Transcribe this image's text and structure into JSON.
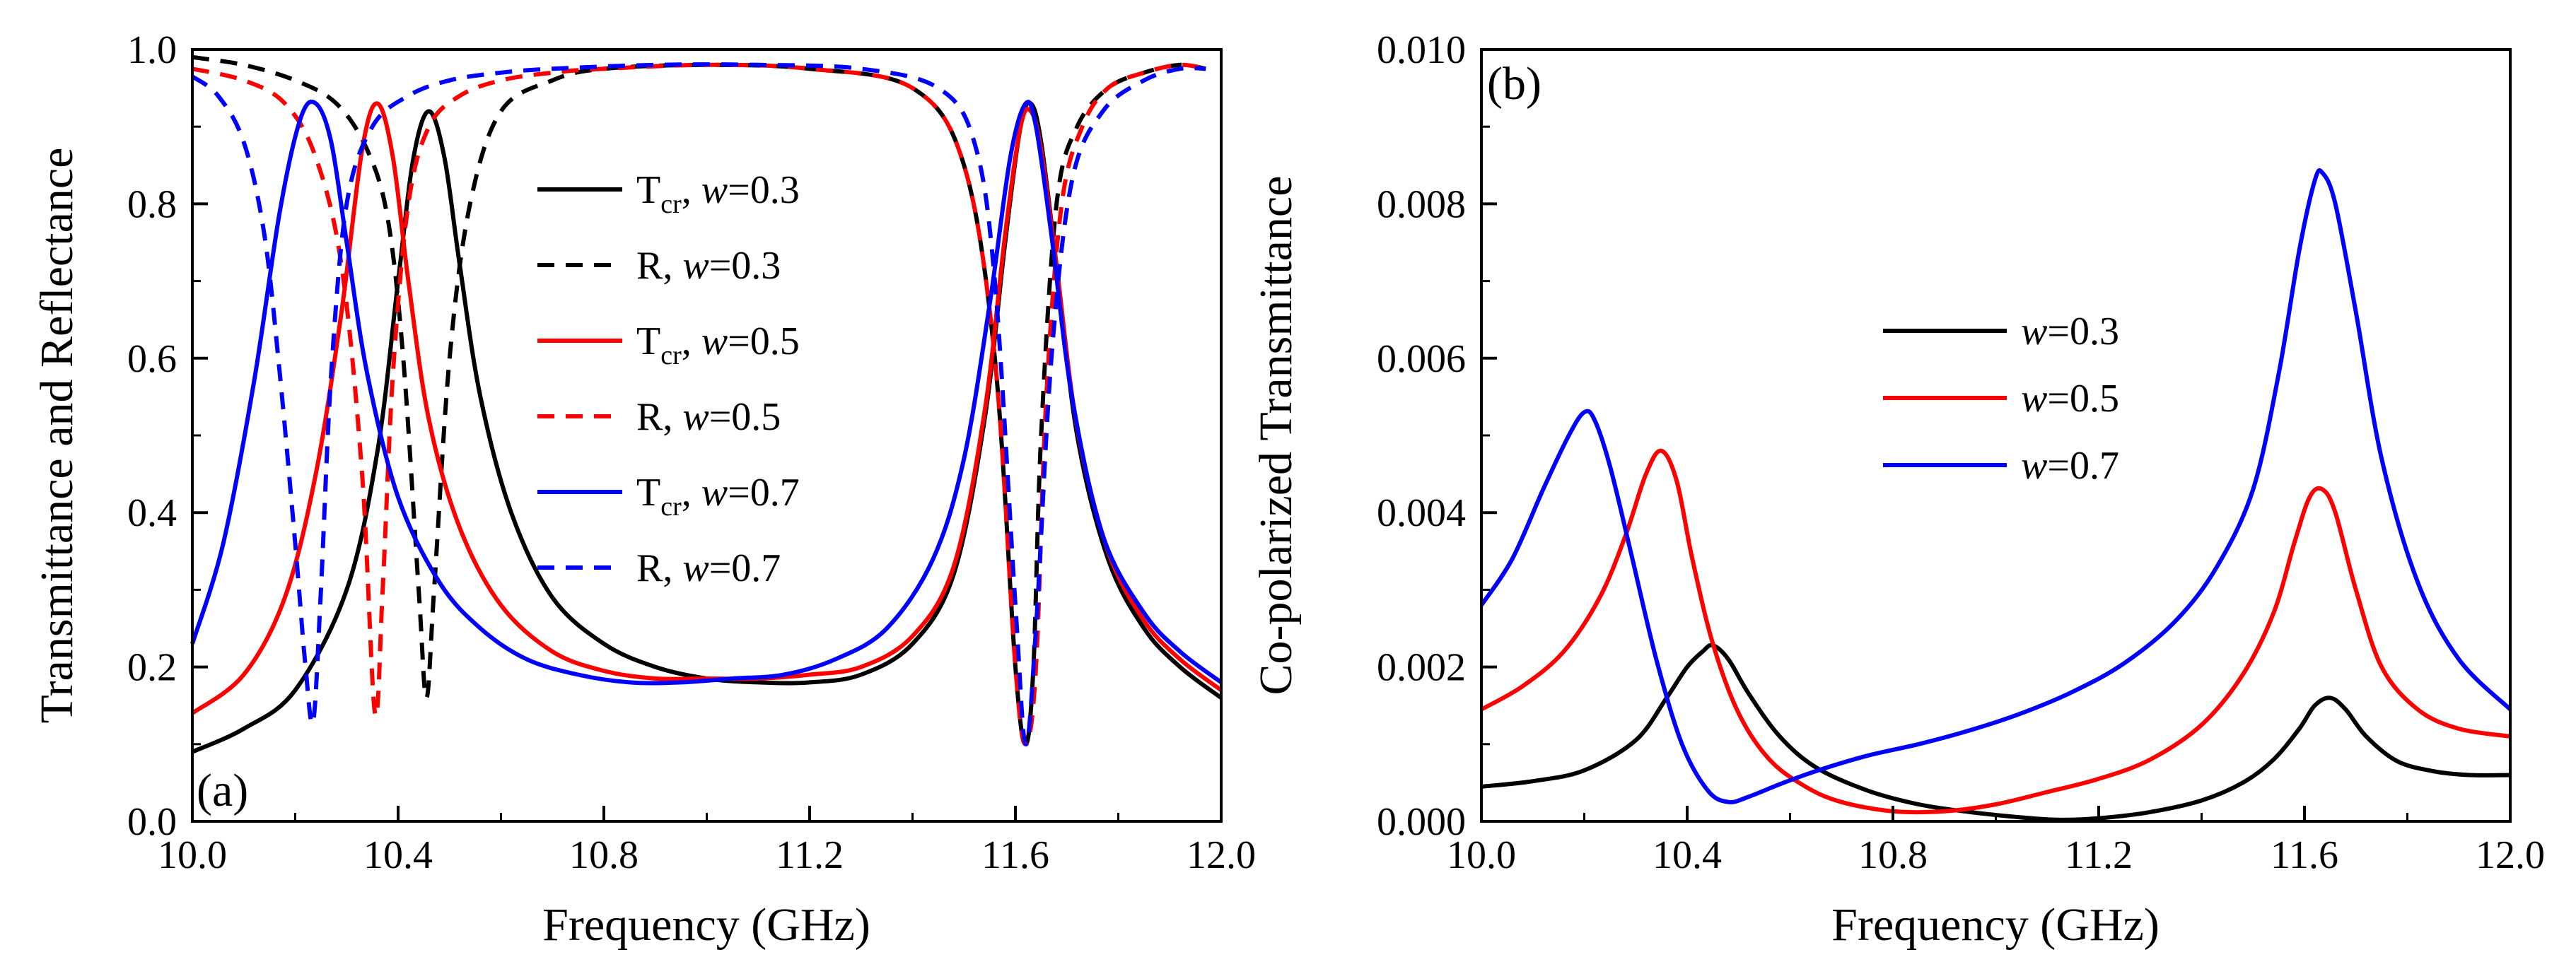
{
  "chart_data": [
    {
      "panel": "(a)",
      "type": "line",
      "xlabel": "Frequency (GHz)",
      "ylabel": "Transmittance and Reflectance",
      "xlim": [
        10.0,
        12.0
      ],
      "ylim": [
        0.0,
        1.0
      ],
      "xticks": [
        "10.0",
        "10.4",
        "10.8",
        "11.2",
        "11.6",
        "12.0"
      ],
      "yticks": [
        "0.0",
        "0.2",
        "0.4",
        "0.6",
        "0.8",
        "1.0"
      ],
      "legend_position": "center",
      "series": [
        {
          "name": "Tcr, w=0.3",
          "legend": {
            "main": "T",
            "sub": "cr",
            "mid": ", ",
            "var": "w",
            "val": "=0.3"
          },
          "color": "#000000",
          "dash": false,
          "x": [
            10.0,
            10.1,
            10.2,
            10.3,
            10.36,
            10.4,
            10.43,
            10.46,
            10.49,
            10.52,
            10.56,
            10.62,
            10.7,
            10.8,
            10.9,
            11.0,
            11.1,
            11.2,
            11.3,
            11.4,
            11.48,
            11.54,
            11.58,
            11.61,
            11.63,
            11.65,
            11.68,
            11.72,
            11.78,
            11.85,
            11.92,
            12.0
          ],
          "y": [
            0.09,
            0.12,
            0.17,
            0.3,
            0.48,
            0.7,
            0.86,
            0.92,
            0.86,
            0.72,
            0.55,
            0.4,
            0.29,
            0.23,
            0.2,
            0.185,
            0.18,
            0.18,
            0.19,
            0.23,
            0.32,
            0.52,
            0.75,
            0.9,
            0.93,
            0.88,
            0.72,
            0.5,
            0.34,
            0.25,
            0.2,
            0.16
          ]
        },
        {
          "name": "R, w=0.3",
          "legend": {
            "main": "R",
            "sub": "",
            "mid": ", ",
            "var": "w",
            "val": "=0.3"
          },
          "color": "#000000",
          "dash": true,
          "x": [
            10.0,
            10.1,
            10.2,
            10.28,
            10.34,
            10.38,
            10.41,
            10.44,
            10.455,
            10.47,
            10.5,
            10.54,
            10.6,
            10.7,
            10.8,
            11.0,
            11.2,
            11.4,
            11.5,
            11.56,
            11.6,
            11.62,
            11.635,
            11.65,
            11.68,
            11.72,
            11.78,
            11.85,
            11.92,
            11.97
          ],
          "y": [
            0.99,
            0.98,
            0.96,
            0.93,
            0.87,
            0.78,
            0.6,
            0.3,
            0.16,
            0.3,
            0.6,
            0.8,
            0.92,
            0.96,
            0.975,
            0.98,
            0.975,
            0.95,
            0.85,
            0.6,
            0.2,
            0.1,
            0.2,
            0.5,
            0.8,
            0.9,
            0.95,
            0.97,
            0.98,
            0.975
          ]
        },
        {
          "name": "Tcr, w=0.5",
          "legend": {
            "main": "T",
            "sub": "cr",
            "mid": ", ",
            "var": "w",
            "val": "=0.5"
          },
          "color": "#ff0000",
          "dash": false,
          "x": [
            10.0,
            10.1,
            10.18,
            10.24,
            10.29,
            10.33,
            10.36,
            10.39,
            10.42,
            10.46,
            10.52,
            10.6,
            10.7,
            10.8,
            10.9,
            11.0,
            11.1,
            11.2,
            11.3,
            11.4,
            11.48,
            11.54,
            11.58,
            11.61,
            11.63,
            11.65,
            11.68,
            11.72,
            11.78,
            11.85,
            11.92,
            12.0
          ],
          "y": [
            0.14,
            0.19,
            0.29,
            0.45,
            0.66,
            0.87,
            0.93,
            0.86,
            0.7,
            0.52,
            0.38,
            0.28,
            0.22,
            0.195,
            0.185,
            0.185,
            0.185,
            0.19,
            0.2,
            0.24,
            0.33,
            0.53,
            0.76,
            0.9,
            0.92,
            0.87,
            0.72,
            0.51,
            0.35,
            0.26,
            0.21,
            0.17
          ]
        },
        {
          "name": "R, w=0.5",
          "legend": {
            "main": "R",
            "sub": "",
            "mid": ", ",
            "var": "w",
            "val": "=0.5"
          },
          "color": "#ff0000",
          "dash": true,
          "x": [
            10.0,
            10.1,
            10.18,
            10.24,
            10.29,
            10.33,
            10.355,
            10.37,
            10.39,
            10.42,
            10.46,
            10.52,
            10.6,
            10.7,
            10.8,
            11.0,
            11.2,
            11.4,
            11.5,
            11.56,
            11.6,
            11.62,
            11.64,
            11.66,
            11.69,
            11.73,
            11.78,
            11.85,
            11.92,
            11.97
          ],
          "y": [
            0.975,
            0.96,
            0.93,
            0.86,
            0.72,
            0.45,
            0.14,
            0.3,
            0.58,
            0.8,
            0.9,
            0.94,
            0.96,
            0.97,
            0.975,
            0.98,
            0.975,
            0.95,
            0.85,
            0.6,
            0.2,
            0.1,
            0.2,
            0.55,
            0.8,
            0.9,
            0.95,
            0.97,
            0.98,
            0.975
          ]
        },
        {
          "name": "Tcr, w=0.7",
          "legend": {
            "main": "T",
            "sub": "cr",
            "mid": ", ",
            "var": "w",
            "val": "=0.7"
          },
          "color": "#0000ff",
          "dash": false,
          "x": [
            10.0,
            10.06,
            10.12,
            10.17,
            10.21,
            10.24,
            10.27,
            10.3,
            10.34,
            10.4,
            10.48,
            10.56,
            10.65,
            10.75,
            10.85,
            10.95,
            11.05,
            11.15,
            11.25,
            11.35,
            11.44,
            11.5,
            11.55,
            11.59,
            11.62,
            11.64,
            11.67,
            11.71,
            11.77,
            11.85,
            11.92,
            12.0
          ],
          "y": [
            0.23,
            0.36,
            0.57,
            0.79,
            0.91,
            0.93,
            0.88,
            0.75,
            0.58,
            0.42,
            0.31,
            0.25,
            0.21,
            0.19,
            0.18,
            0.18,
            0.185,
            0.19,
            0.21,
            0.25,
            0.34,
            0.47,
            0.67,
            0.86,
            0.93,
            0.9,
            0.76,
            0.55,
            0.37,
            0.27,
            0.22,
            0.18
          ]
        },
        {
          "name": "R, w=0.7",
          "legend": {
            "main": "R",
            "sub": "",
            "mid": ", ",
            "var": "w",
            "val": "=0.7"
          },
          "color": "#0000ff",
          "dash": true,
          "x": [
            10.0,
            10.05,
            10.1,
            10.14,
            10.17,
            10.2,
            10.22,
            10.235,
            10.25,
            10.27,
            10.3,
            10.35,
            10.42,
            10.5,
            10.6,
            10.7,
            10.9,
            11.1,
            11.3,
            11.45,
            11.52,
            11.56,
            11.6,
            11.62,
            11.64,
            11.67,
            11.71,
            11.77,
            11.85,
            11.92,
            11.97
          ],
          "y": [
            0.965,
            0.94,
            0.88,
            0.76,
            0.58,
            0.36,
            0.2,
            0.13,
            0.3,
            0.58,
            0.8,
            0.9,
            0.94,
            0.96,
            0.97,
            0.975,
            0.98,
            0.98,
            0.975,
            0.95,
            0.88,
            0.7,
            0.28,
            0.1,
            0.25,
            0.6,
            0.83,
            0.92,
            0.96,
            0.975,
            0.975
          ]
        }
      ]
    },
    {
      "panel": "(b)",
      "type": "line",
      "xlabel": "Frequency (GHz)",
      "ylabel": "Co-polarized Transmittance",
      "xlim": [
        10.0,
        12.0
      ],
      "ylim": [
        0.0,
        0.01
      ],
      "xticks": [
        "10.0",
        "10.4",
        "10.8",
        "11.2",
        "11.6",
        "12.0"
      ],
      "yticks": [
        "0.000",
        "0.002",
        "0.004",
        "0.006",
        "0.008",
        "0.010"
      ],
      "legend_position": "center",
      "series": [
        {
          "name": "w=0.3",
          "legend": {
            "var": "w",
            "val": "=0.3"
          },
          "color": "#000000",
          "dash": false,
          "x": [
            10.0,
            10.1,
            10.2,
            10.3,
            10.36,
            10.4,
            10.43,
            10.45,
            10.48,
            10.52,
            10.58,
            10.65,
            10.75,
            10.85,
            10.95,
            11.05,
            11.12,
            11.2,
            11.3,
            11.4,
            11.48,
            11.54,
            11.59,
            11.62,
            11.65,
            11.68,
            11.72,
            11.78,
            11.85,
            11.92,
            12.0
          ],
          "y": [
            0.00045,
            0.00052,
            0.00066,
            0.00105,
            0.0016,
            0.002,
            0.0022,
            0.00228,
            0.0021,
            0.00165,
            0.0011,
            0.0007,
            0.0004,
            0.00022,
            0.00012,
            5e-05,
            2e-05,
            4e-05,
            0.00012,
            0.00027,
            0.0005,
            0.0008,
            0.0012,
            0.0015,
            0.0016,
            0.00145,
            0.0011,
            0.00078,
            0.00065,
            0.0006,
            0.0006
          ]
        },
        {
          "name": "w=0.5",
          "legend": {
            "var": "w",
            "val": "=0.5"
          },
          "color": "#ff0000",
          "dash": false,
          "x": [
            10.0,
            10.08,
            10.16,
            10.23,
            10.28,
            10.32,
            10.35,
            10.38,
            10.41,
            10.45,
            10.5,
            10.56,
            10.63,
            10.7,
            10.8,
            10.9,
            11.0,
            11.1,
            11.2,
            11.3,
            11.4,
            11.48,
            11.54,
            11.58,
            11.61,
            11.635,
            11.66,
            11.7,
            11.75,
            11.82,
            11.9,
            12.0
          ],
          "y": [
            0.00145,
            0.00175,
            0.0022,
            0.0029,
            0.0037,
            0.0045,
            0.0048,
            0.0044,
            0.0034,
            0.0023,
            0.0014,
            0.0008,
            0.00045,
            0.00025,
            0.00013,
            0.00013,
            0.00022,
            0.00038,
            0.00055,
            0.0008,
            0.00125,
            0.0019,
            0.0027,
            0.0036,
            0.0042,
            0.0043,
            0.004,
            0.003,
            0.002,
            0.00145,
            0.0012,
            0.0011
          ]
        },
        {
          "name": "w=0.7",
          "legend": {
            "var": "w",
            "val": "=0.7"
          },
          "color": "#0000ff",
          "dash": false,
          "x": [
            10.0,
            10.06,
            10.12,
            10.17,
            10.2,
            10.22,
            10.25,
            10.29,
            10.34,
            10.39,
            10.44,
            10.48,
            10.52,
            10.58,
            10.65,
            10.75,
            10.85,
            10.95,
            11.05,
            11.15,
            11.25,
            11.35,
            11.43,
            11.5,
            11.55,
            11.59,
            11.62,
            11.635,
            11.66,
            11.7,
            11.75,
            11.82,
            11.9,
            12.0
          ],
          "y": [
            0.0028,
            0.0034,
            0.0043,
            0.005,
            0.0053,
            0.0052,
            0.0046,
            0.0035,
            0.0021,
            0.001,
            0.0004,
            0.00025,
            0.00032,
            0.00048,
            0.00065,
            0.00085,
            0.001,
            0.00118,
            0.0014,
            0.00168,
            0.00205,
            0.0026,
            0.0033,
            0.0043,
            0.0058,
            0.0074,
            0.0083,
            0.0084,
            0.008,
            0.0066,
            0.0047,
            0.0031,
            0.0021,
            0.00145
          ]
        }
      ]
    }
  ]
}
